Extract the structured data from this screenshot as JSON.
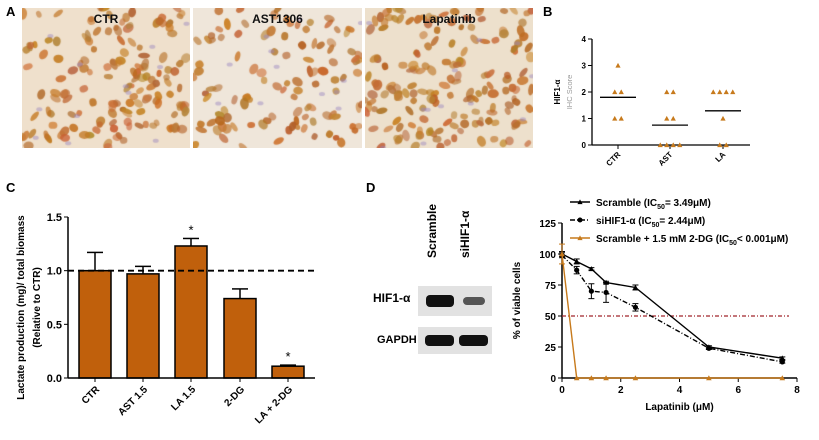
{
  "panels": {
    "a": "A",
    "b": "B",
    "c": "C",
    "d": "D"
  },
  "panel_a": {
    "images": [
      {
        "title": "CTR"
      },
      {
        "title": "AST1306"
      },
      {
        "title": "Lapatinib"
      }
    ]
  },
  "panel_d_blot": {
    "lanes": [
      "Scramble",
      "siHIF1-α"
    ],
    "rows": [
      "HIF1-α",
      "GAPDH"
    ]
  },
  "colors": {
    "orange": "#c0600c",
    "triangle": "#c77a1c",
    "black": "#000000",
    "red_dash": "#a0242a",
    "stain_brown": "#b5651d"
  },
  "chart_data": [
    {
      "type": "scatter",
      "panel": "B",
      "ylabel_line1": "HIF1-α",
      "ylabel_line2": "IHC Score",
      "ylim": [
        0,
        4
      ],
      "yticks": [
        "0",
        "1",
        "2",
        "3",
        "4"
      ],
      "categories": [
        "CTR",
        "AST",
        "LA"
      ],
      "points": [
        [
          3,
          2,
          2,
          1,
          1
        ],
        [
          2,
          2,
          1,
          1,
          0,
          0,
          0,
          0
        ],
        [
          2,
          2,
          2,
          2,
          1,
          0,
          0
        ]
      ],
      "means": [
        1.8,
        0.75,
        1.29
      ],
      "marker": "triangle"
    },
    {
      "type": "bar",
      "panel": "C",
      "ylabel_line1": "Lactate production (mg)/ total biomass",
      "ylabel_line2": "(Relative to CTR)",
      "ylim": [
        0,
        1.5
      ],
      "yticks": [
        "0.0",
        "0.5",
        "1.0",
        "1.5"
      ],
      "categories": [
        "CTR",
        "AST 1.5",
        "LA 1.5",
        "2-DG",
        "LA + 2-DG"
      ],
      "values": [
        1.0,
        0.97,
        1.23,
        0.74,
        0.11
      ],
      "errors": [
        0.17,
        0.07,
        0.07,
        0.09,
        0.01
      ],
      "significance": [
        "",
        "",
        "*",
        "",
        "*"
      ],
      "reference_line": 1.0
    },
    {
      "type": "line",
      "panel": "D",
      "xlabel": "Lapatinib (μM)",
      "ylabel": "% of viable cells",
      "xlim": [
        0,
        8
      ],
      "ylim": [
        0,
        125
      ],
      "xticks": [
        "0",
        "2",
        "4",
        "6",
        "8"
      ],
      "yticks": [
        "0",
        "25",
        "50",
        "75",
        "100",
        "125"
      ],
      "reference_line": 50,
      "x": [
        0,
        0.5,
        1,
        1.5,
        2.5,
        5,
        7.5
      ],
      "series": [
        {
          "name": "Scramble (IC50= 3.49μM)",
          "label_main": "Scramble (IC",
          "label_sub": "50",
          "label_tail": "= 3.49μM)",
          "values": [
            100,
            94,
            88,
            77,
            73,
            25,
            16
          ],
          "errors": [
            2,
            2,
            1,
            1,
            2,
            1,
            1
          ],
          "color": "#000000",
          "style": "solid",
          "marker": "triangle"
        },
        {
          "name": "siHIF1-α (IC50= 2.44μM)",
          "label_main": "siHIF1-α (IC",
          "label_sub": "50",
          "label_tail": "= 2.44μM)",
          "values": [
            99,
            87,
            70,
            69,
            57,
            24,
            13
          ],
          "errors": [
            2,
            3,
            6,
            8,
            3,
            1,
            1
          ],
          "color": "#000000",
          "style": "dashdot",
          "marker": "circle"
        },
        {
          "name": "Scramble + 1.5 mM 2-DG (IC50< 0.001μM)",
          "label_main": "Scramble + 1.5 mM 2-DG (IC",
          "label_sub": "50",
          "label_tail": "< 0.001μM)",
          "values": [
            100,
            0,
            0,
            0,
            0,
            0,
            0
          ],
          "errors": [
            8,
            0,
            0,
            0,
            0,
            0,
            0
          ],
          "color": "#c77a1c",
          "style": "solid",
          "marker": "triangle"
        }
      ]
    }
  ]
}
